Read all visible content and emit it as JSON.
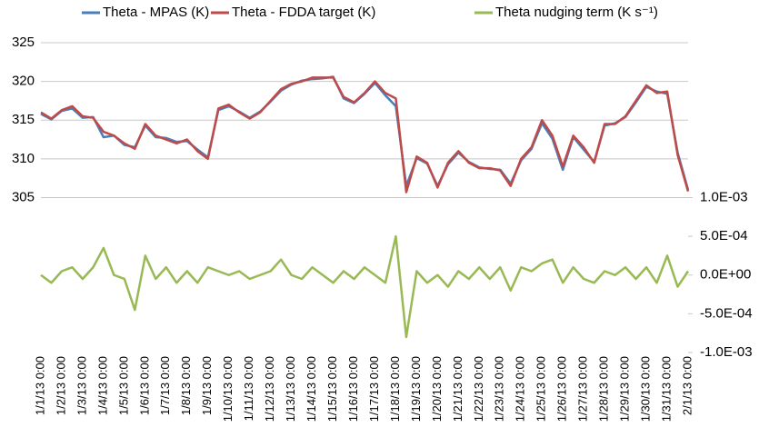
{
  "chart_data": {
    "type": "line",
    "categories": [
      "1/1/13 0:00",
      null,
      "1/2/13 0:00",
      null,
      "1/3/13 0:00",
      null,
      "1/4/13 0:00",
      null,
      "1/5/13 0:00",
      null,
      "1/6/13 0:00",
      null,
      "1/7/13 0:00",
      null,
      "1/8/13 0:00",
      null,
      "1/9/13 0:00",
      null,
      "1/10/13 0:00",
      null,
      "1/11/13 0:00",
      null,
      "1/12/13 0:00",
      null,
      "1/13/13 0:00",
      null,
      "1/14/13 0:00",
      null,
      "1/15/13 0:00",
      null,
      "1/16/13 0:00",
      null,
      "1/17/13 0:00",
      null,
      "1/18/13 0:00",
      null,
      "1/19/13 0:00",
      null,
      "1/20/13 0:00",
      null,
      "1/21/13 0:00",
      null,
      "1/22/13 0:00",
      null,
      "1/23/13 0:00",
      null,
      "1/24/13 0:00",
      null,
      "1/25/13 0:00",
      null,
      "1/26/13 0:00",
      null,
      "1/27/13 0:00",
      null,
      "1/28/13 0:00",
      null,
      "1/29/13 0:00",
      null,
      "1/30/13 0:00",
      null,
      "1/31/13 0:00",
      null,
      "2/1/13 0:00"
    ],
    "series": [
      {
        "name": "Theta nudging term (K s⁻¹)",
        "color": "#98b954",
        "axis": "y2",
        "values": [
          0,
          -0.0001,
          5e-05,
          0.0001,
          -5e-05,
          0.0001,
          0.00035,
          0,
          -5e-05,
          -0.00045,
          0.00025,
          -5e-05,
          0.0001,
          -0.0001,
          5e-05,
          -0.0001,
          0.0001,
          5e-05,
          0,
          5e-05,
          -5e-05,
          0,
          5e-05,
          0.0002,
          0,
          -5e-05,
          0.0001,
          0,
          -0.0001,
          5e-05,
          -5e-05,
          0.0001,
          0,
          -0.0001,
          0.0005,
          -0.0008,
          5e-05,
          -0.0001,
          0,
          -0.00015,
          5e-05,
          -5e-05,
          0.0001,
          -5e-05,
          0.0001,
          -0.0002,
          0.0001,
          5e-05,
          0.00015,
          0.0002,
          -0.0001,
          0.0001,
          -5e-05,
          -0.0001,
          5e-05,
          0,
          0.0001,
          -5e-05,
          0.0001,
          -0.0001,
          0.00025,
          -0.00015,
          5e-05
        ]
      },
      {
        "name": "Theta - MPAS (K)",
        "color": "#4a7ebb",
        "values": [
          315.8,
          315.1,
          316.2,
          316.5,
          315.3,
          315.4,
          312.8,
          313,
          311.8,
          311.5,
          314.3,
          312.8,
          312.7,
          312.2,
          312.3,
          311.2,
          310.2,
          316.3,
          316.8,
          316.1,
          315.3,
          316.1,
          317.4,
          318.8,
          319.6,
          320.1,
          320.3,
          320.4,
          320.6,
          317.8,
          317.2,
          318.4,
          319.8,
          318.2,
          316.8,
          306.5,
          310.1,
          309.4,
          306.5,
          309.3,
          310.8,
          309.6,
          308.9,
          308.7,
          308.6,
          306.8,
          309.8,
          311.3,
          314.6,
          312.6,
          308.6,
          312.8,
          311.2,
          309.6,
          314.3,
          314.6,
          315.4,
          317.3,
          319.3,
          318.7,
          318.4,
          310.8,
          306
        ]
      },
      {
        "name": "Theta - FDDA target (K)",
        "color": "#be4b48",
        "values": [
          316,
          315.2,
          316.3,
          316.8,
          315.5,
          315.3,
          313.5,
          313,
          312,
          311.3,
          314.5,
          313,
          312.5,
          312,
          312.5,
          311,
          310,
          316.5,
          317,
          316,
          315.2,
          316,
          317.5,
          319,
          319.7,
          320,
          320.5,
          320.5,
          320.5,
          318,
          317.3,
          318.5,
          320,
          318.5,
          317.8,
          305.7,
          310.3,
          309.5,
          306.3,
          309.5,
          311,
          309.5,
          308.8,
          308.8,
          308.5,
          306.5,
          310,
          311.5,
          315,
          313,
          309,
          313,
          311.5,
          309.5,
          314.5,
          314.5,
          315.5,
          317.5,
          319.5,
          318.5,
          318.7,
          310.5,
          305.8
        ]
      }
    ],
    "legend_order": [
      1,
      2,
      0
    ],
    "legend": "top",
    "ylim": [
      285,
      325
    ],
    "yticks": [
      305,
      310,
      315,
      320,
      325
    ],
    "y2lim": [
      -0.001,
      0.003
    ],
    "y2ticks": [
      {
        "value": 0.001,
        "label": "1.0E-03"
      },
      {
        "value": 0.0005,
        "label": "5.0E-04"
      },
      {
        "value": 0,
        "label": "0.0E+00"
      },
      {
        "value": -0.0005,
        "label": "-5.0E-04"
      },
      {
        "value": -0.001,
        "label": "-1.0E-03"
      }
    ],
    "grid": true
  }
}
